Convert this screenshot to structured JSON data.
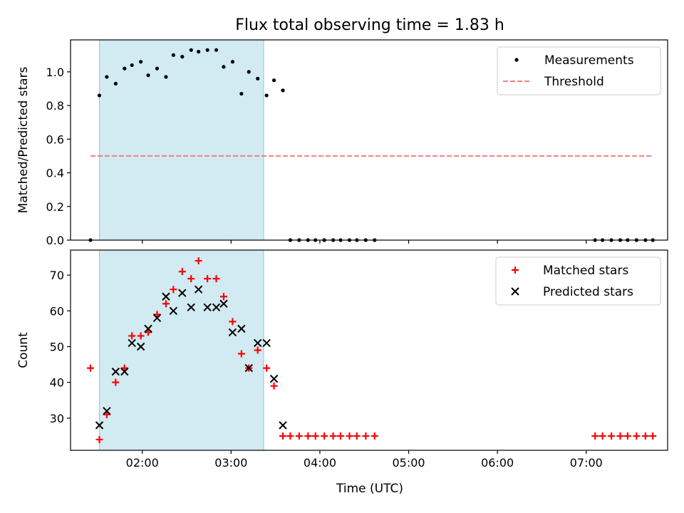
{
  "chart_data": {
    "type": "scatter",
    "title": "Flux total observing time = 1.83 h",
    "xlabel": "Time (UTC)",
    "x_ticks": [
      "02:00",
      "03:00",
      "04:00",
      "05:00",
      "06:00",
      "07:00"
    ],
    "highlight_span": [
      "01:31",
      "03:22"
    ],
    "panels": [
      {
        "ylabel": "Matched/Predicted stars",
        "ylim": [
          0,
          1.19
        ],
        "y_ticks": [
          "0.0",
          "0.2",
          "0.4",
          "0.6",
          "0.8",
          "1.0"
        ],
        "legend_position": "top-right",
        "series": [
          {
            "name": "Measurements",
            "marker": "dot",
            "color": "#000000",
            "x": [
              "01:25",
              "01:31",
              "01:36",
              "01:42",
              "01:48",
              "01:53",
              "01:59",
              "02:04",
              "02:10",
              "02:16",
              "02:21",
              "02:27",
              "02:33",
              "02:38",
              "02:44",
              "02:50",
              "02:55",
              "03:01",
              "03:07",
              "03:12",
              "03:18",
              "03:24",
              "03:29",
              "03:35",
              "03:40",
              "03:46",
              "03:52",
              "03:57",
              "04:03",
              "04:09",
              "04:14",
              "04:20",
              "04:25",
              "04:31",
              "04:37",
              "07:06",
              "07:11",
              "07:17",
              "07:23",
              "07:28",
              "07:34",
              "07:40",
              "07:45"
            ],
            "y": [
              0.0,
              0.86,
              0.97,
              0.93,
              1.02,
              1.04,
              1.06,
              0.98,
              1.02,
              0.97,
              1.1,
              1.09,
              1.13,
              1.12,
              1.13,
              1.13,
              1.03,
              1.06,
              0.87,
              1.0,
              0.96,
              0.86,
              0.95,
              0.89,
              0.0,
              0.0,
              0.0,
              0.0,
              0.0,
              0.0,
              0.0,
              0.0,
              0.0,
              0.0,
              0.0,
              0.0,
              0.0,
              0.0,
              0.0,
              0.0,
              0.0,
              0.0,
              0.0
            ]
          },
          {
            "name": "Threshold",
            "marker": "dashed-line",
            "color": "#f08080",
            "x": [
              "01:25",
              "07:45"
            ],
            "y": [
              0.5,
              0.5
            ]
          }
        ]
      },
      {
        "ylabel": "Count",
        "ylim": [
          21,
          77
        ],
        "y_ticks": [
          "30",
          "40",
          "50",
          "60",
          "70"
        ],
        "legend_position": "top-right",
        "series": [
          {
            "name": "Matched stars",
            "marker": "plus",
            "color": "#ff0000",
            "x": [
              "01:25",
              "01:31",
              "01:36",
              "01:42",
              "01:48",
              "01:53",
              "01:59",
              "02:04",
              "02:10",
              "02:16",
              "02:21",
              "02:27",
              "02:33",
              "02:38",
              "02:44",
              "02:50",
              "02:55",
              "03:01",
              "03:07",
              "03:12",
              "03:18",
              "03:24",
              "03:29",
              "03:35",
              "03:40",
              "03:46",
              "03:52",
              "03:57",
              "04:03",
              "04:09",
              "04:14",
              "04:20",
              "04:25",
              "04:31",
              "04:37",
              "07:06",
              "07:11",
              "07:17",
              "07:23",
              "07:28",
              "07:34",
              "07:40",
              "07:45"
            ],
            "y": [
              44,
              24,
              31,
              40,
              44,
              53,
              53,
              54,
              59,
              62,
              66,
              71,
              69,
              74,
              69,
              69,
              64,
              57,
              48,
              44,
              49,
              44,
              39,
              25,
              25,
              25,
              25,
              25,
              25,
              25,
              25,
              25,
              25,
              25,
              25,
              25,
              25,
              25,
              25,
              25,
              25,
              25,
              25
            ]
          },
          {
            "name": "Predicted stars",
            "marker": "x",
            "color": "#000000",
            "x": [
              "01:31",
              "01:36",
              "01:42",
              "01:48",
              "01:53",
              "01:59",
              "02:04",
              "02:10",
              "02:16",
              "02:21",
              "02:27",
              "02:33",
              "02:38",
              "02:44",
              "02:50",
              "02:55",
              "03:01",
              "03:07",
              "03:12",
              "03:18",
              "03:24",
              "03:29",
              "03:35"
            ],
            "y": [
              28,
              32,
              43,
              43,
              51,
              50,
              55,
              58,
              64,
              60,
              65,
              61,
              66,
              61,
              61,
              62,
              54,
              55,
              44,
              51,
              51,
              41,
              28
            ]
          }
        ]
      }
    ]
  },
  "colors": {
    "highlight_fill": "#add8e6",
    "highlight_stroke": "#8ccbd6",
    "axes": "#000000"
  }
}
